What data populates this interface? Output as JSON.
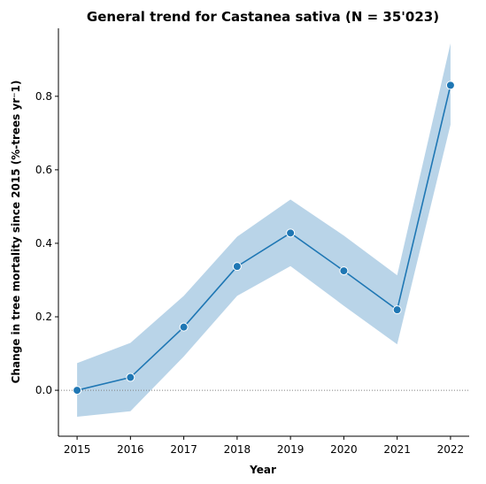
{
  "chart_data": {
    "type": "line",
    "title": "General trend for Castanea sativa  (N = 35'023)",
    "xlabel": "Year",
    "ylabel": "Change in tree mortality since 2015 (%-trees yr⁻1)",
    "x": [
      2015,
      2016,
      2017,
      2018,
      2019,
      2020,
      2021,
      2022
    ],
    "x_tick_labels": [
      "2015",
      "2016",
      "2017",
      "2018",
      "2019",
      "2020",
      "2021",
      "2022"
    ],
    "y_ticks": [
      0.0,
      0.2,
      0.4,
      0.6,
      0.8
    ],
    "y_tick_labels": [
      "0.0",
      "0.2",
      "0.4",
      "0.6",
      "0.8"
    ],
    "xlim": [
      2014.65,
      2022.35
    ],
    "ylim": [
      -0.125,
      0.985
    ],
    "series": [
      {
        "values": [
          0.0,
          0.035,
          0.172,
          0.337,
          0.428,
          0.325,
          0.219,
          0.83
        ],
        "lower": [
          -0.072,
          -0.057,
          0.092,
          0.257,
          0.338,
          0.23,
          0.125,
          0.723
        ],
        "upper": [
          0.074,
          0.129,
          0.257,
          0.418,
          0.519,
          0.421,
          0.313,
          0.944
        ]
      }
    ],
    "reference_line": {
      "y": 0.0,
      "style": "dotted"
    },
    "grid": false,
    "colors": {
      "line": "#1f77b4",
      "band": "#b9d4e8",
      "marker_edge": "#ffffff",
      "reference": "#808080"
    }
  }
}
